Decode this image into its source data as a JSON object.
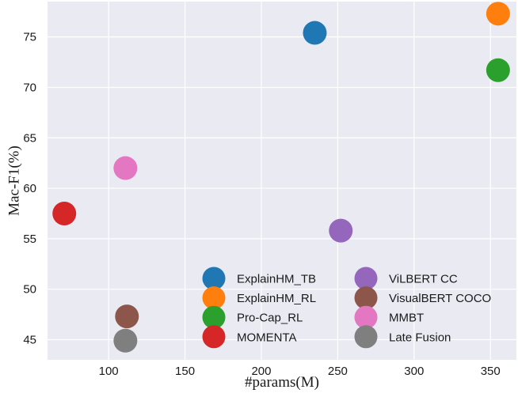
{
  "chart_data": {
    "type": "scatter",
    "title": "",
    "xlabel": "#params(M)",
    "ylabel": "Mac-F1(%)",
    "xlim": [
      60,
      367
    ],
    "ylim": [
      43,
      78.5
    ],
    "xticks": [
      100,
      150,
      200,
      250,
      300,
      350
    ],
    "yticks": [
      45,
      50,
      55,
      60,
      65,
      70,
      75
    ],
    "grid": true,
    "legend_position": "bottom-right",
    "legend_columns": 2,
    "series": [
      {
        "name": "ExplainHM_TB",
        "color": "#1f77b4",
        "x": 235,
        "y": 75.4
      },
      {
        "name": "ExplainHM_RL",
        "color": "#ff7f0e",
        "x": 355,
        "y": 77.3
      },
      {
        "name": "Pro-Cap_RL",
        "color": "#2ca02c",
        "x": 355,
        "y": 71.7
      },
      {
        "name": "MOMENTA",
        "color": "#d62728",
        "x": 71,
        "y": 57.5
      },
      {
        "name": "ViLBERT CC",
        "color": "#9467bd",
        "x": 252,
        "y": 55.8
      },
      {
        "name": "VisualBERT COCO",
        "color": "#8c564b",
        "x": 112,
        "y": 47.3
      },
      {
        "name": "MMBT",
        "color": "#e377c2",
        "x": 111,
        "y": 62.0
      },
      {
        "name": "Late Fusion",
        "color": "#7f7f7f",
        "x": 111,
        "y": 44.9
      }
    ]
  }
}
